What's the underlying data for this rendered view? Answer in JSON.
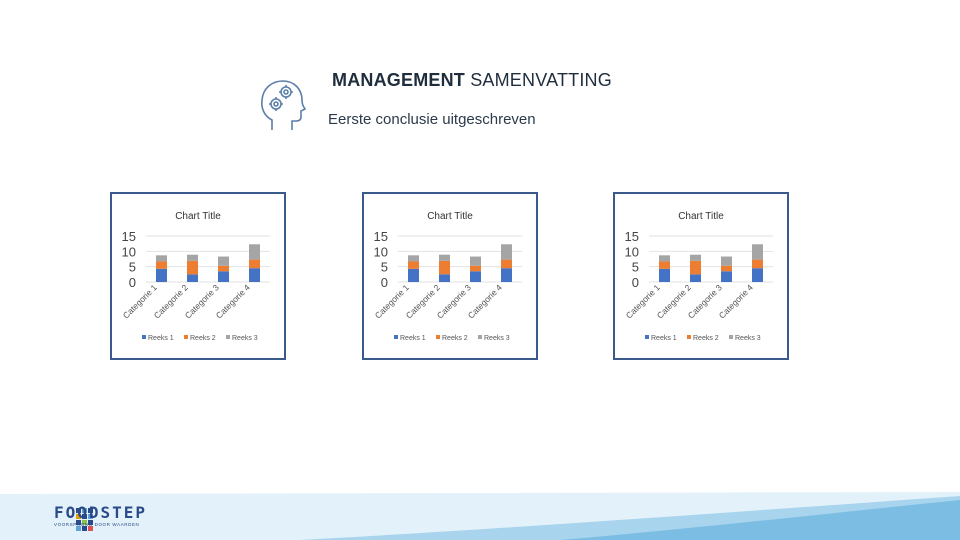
{
  "header": {
    "title_bold": "MANAGEMENT",
    "title_rest": " SAMENVATTING",
    "subtitle": "Eerste conclusie uitgeschreven"
  },
  "icons": {
    "head": "head-gears-icon"
  },
  "brand": {
    "name": "FOODSTEP",
    "tagline": "VOORSPRONG DOOR WAARDEN",
    "accent": "#3b5a8c"
  },
  "chart_data": [
    {
      "type": "bar",
      "stacked": true,
      "title": "Chart Title",
      "categories": [
        "Categorie 1",
        "Categorie 2",
        "Categorie 3",
        "Categorie 4"
      ],
      "series": [
        {
          "name": "Reeks 1",
          "color": "#4472c4",
          "values": [
            4.3,
            2.5,
            3.5,
            4.5
          ]
        },
        {
          "name": "Reeks 2",
          "color": "#ed7d31",
          "values": [
            2.4,
            4.4,
            1.8,
            2.8
          ]
        },
        {
          "name": "Reeks 3",
          "color": "#a5a5a5",
          "values": [
            2,
            2,
            3,
            5
          ]
        }
      ],
      "yticks": [
        "15",
        "10",
        "5",
        "0"
      ],
      "ylim": [
        0,
        15
      ],
      "legend": "bottom"
    },
    {
      "type": "bar",
      "stacked": true,
      "title": "Chart Title",
      "categories": [
        "Categorie 1",
        "Categorie 2",
        "Categorie 3",
        "Categorie 4"
      ],
      "series": [
        {
          "name": "Reeks 1",
          "color": "#4472c4",
          "values": [
            4.3,
            2.5,
            3.5,
            4.5
          ]
        },
        {
          "name": "Reeks 2",
          "color": "#ed7d31",
          "values": [
            2.4,
            4.4,
            1.8,
            2.8
          ]
        },
        {
          "name": "Reeks 3",
          "color": "#a5a5a5",
          "values": [
            2,
            2,
            3,
            5
          ]
        }
      ],
      "yticks": [
        "15",
        "10",
        "5",
        "0"
      ],
      "ylim": [
        0,
        15
      ],
      "legend": "bottom"
    },
    {
      "type": "bar",
      "stacked": true,
      "title": "Chart Title",
      "categories": [
        "Categorie 1",
        "Categorie 2",
        "Categorie 3",
        "Categorie 4"
      ],
      "series": [
        {
          "name": "Reeks 1",
          "color": "#4472c4",
          "values": [
            4.3,
            2.5,
            3.5,
            4.5
          ]
        },
        {
          "name": "Reeks 2",
          "color": "#ed7d31",
          "values": [
            2.4,
            4.4,
            1.8,
            2.8
          ]
        },
        {
          "name": "Reeks 3",
          "color": "#a5a5a5",
          "values": [
            2,
            2,
            3,
            5
          ]
        }
      ],
      "yticks": [
        "15",
        "10",
        "5",
        "0"
      ],
      "ylim": [
        0,
        15
      ],
      "legend": "bottom"
    }
  ]
}
